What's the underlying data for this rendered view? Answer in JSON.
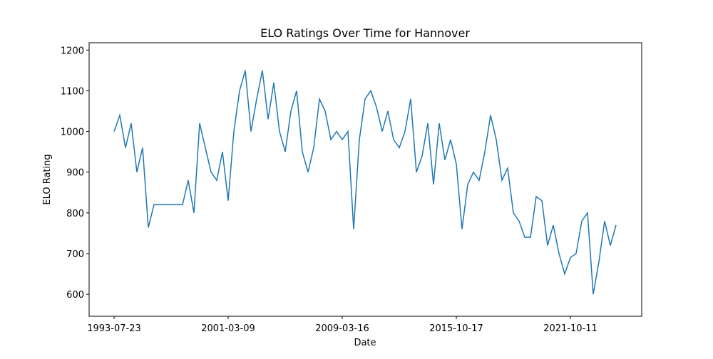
{
  "chart_data": {
    "type": "line",
    "title": "ELO Ratings Over Time for Hannover",
    "x_label": "Date",
    "y_label": "ELO Rating",
    "categories": [
      "1993-07-23",
      null,
      null,
      null,
      null,
      null,
      null,
      null,
      null,
      null,
      null,
      null,
      null,
      null,
      null,
      null,
      null,
      null,
      null,
      null,
      "2001-03-09",
      null,
      null,
      null,
      null,
      null,
      null,
      null,
      null,
      null,
      null,
      null,
      null,
      null,
      null,
      null,
      null,
      null,
      null,
      null,
      "2009-03-16",
      null,
      null,
      null,
      null,
      null,
      null,
      null,
      null,
      null,
      null,
      null,
      null,
      null,
      null,
      null,
      null,
      null,
      null,
      null,
      "2015-10-17",
      null,
      null,
      null,
      null,
      null,
      null,
      null,
      null,
      null,
      null,
      null,
      null,
      null,
      null,
      null,
      null,
      null,
      null,
      null,
      "2021-10-11",
      null,
      null,
      null,
      null,
      null,
      null,
      null,
      null
    ],
    "values": [
      1000,
      1040,
      960,
      1020,
      900,
      960,
      764,
      820,
      820,
      820,
      820,
      820,
      820,
      880,
      800,
      1020,
      960,
      900,
      880,
      950,
      830,
      1000,
      1100,
      1150,
      1000,
      1080,
      1150,
      1030,
      1120,
      1000,
      950,
      1050,
      1100,
      950,
      900,
      960,
      1080,
      1050,
      980,
      1000,
      980,
      1000,
      760,
      980,
      1080,
      1100,
      1060,
      1000,
      1050,
      980,
      960,
      1000,
      1080,
      900,
      940,
      1020,
      870,
      1020,
      930,
      980,
      920,
      760,
      870,
      900,
      880,
      950,
      1040,
      980,
      880,
      910,
      800,
      780,
      740,
      740,
      840,
      830,
      720,
      770,
      700,
      650,
      690,
      700,
      780,
      800,
      600,
      680,
      780,
      720,
      770
    ],
    "color": "#1f77b4",
    "ylim": [
      546,
      1218
    ],
    "yticks": [
      600,
      700,
      800,
      900,
      1000,
      1100,
      1200
    ]
  }
}
